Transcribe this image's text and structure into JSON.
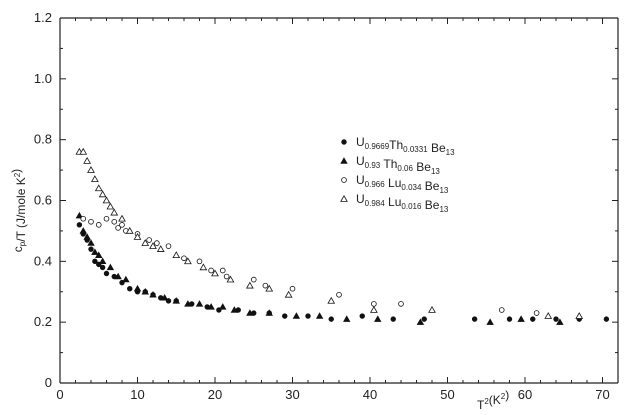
{
  "chart_data": {
    "type": "scatter",
    "title": "",
    "xlabel": "T",
    "xlabel_sup": "2",
    "xlabel_unit": "(K",
    "xlabel_unit_sup": "2",
    "xlabel_close": ")",
    "ylabel": "cp/T (J/mole K²)",
    "xlim": [
      0,
      72
    ],
    "ylim": [
      0,
      1.2
    ],
    "x_ticks": [
      0,
      10,
      20,
      30,
      40,
      50,
      60,
      70
    ],
    "y_ticks": [
      "0",
      "0.2",
      "0.4",
      "0.6",
      "0.8",
      "1.0",
      "1.2"
    ],
    "grid": false,
    "legend_position": "center-right",
    "series": [
      {
        "name": "U0.9669Th0.0331Be13",
        "name_parts": [
          [
            "U",
            ""
          ],
          [
            "0.9669",
            "sub"
          ],
          [
            "Th",
            ""
          ],
          [
            "0.0331",
            "sub"
          ],
          [
            " Be",
            ""
          ],
          [
            "13",
            "sub"
          ]
        ],
        "marker": "filled-circle",
        "points": [
          [
            2.5,
            0.52
          ],
          [
            3.0,
            0.49
          ],
          [
            3.5,
            0.47
          ],
          [
            4.0,
            0.44
          ],
          [
            4.5,
            0.4
          ],
          [
            5.0,
            0.39
          ],
          [
            5.5,
            0.38
          ],
          [
            6.0,
            0.36
          ],
          [
            7.0,
            0.35
          ],
          [
            8.0,
            0.33
          ],
          [
            9.0,
            0.31
          ],
          [
            10.0,
            0.3
          ],
          [
            11.0,
            0.3
          ],
          [
            12.0,
            0.29
          ],
          [
            13.0,
            0.28
          ],
          [
            14.0,
            0.27
          ],
          [
            15.0,
            0.27
          ],
          [
            17.0,
            0.26
          ],
          [
            19.0,
            0.25
          ],
          [
            20.5,
            0.24
          ],
          [
            23.0,
            0.24
          ],
          [
            25.0,
            0.23
          ],
          [
            27.0,
            0.23
          ],
          [
            29.0,
            0.22
          ],
          [
            32.0,
            0.22
          ],
          [
            35.0,
            0.21
          ],
          [
            39.0,
            0.22
          ],
          [
            43.0,
            0.21
          ],
          [
            47.0,
            0.21
          ],
          [
            53.5,
            0.21
          ],
          [
            58.0,
            0.21
          ],
          [
            61.0,
            0.21
          ],
          [
            64.0,
            0.21
          ],
          [
            67.0,
            0.21
          ],
          [
            70.5,
            0.21
          ]
        ]
      },
      {
        "name": "U0.93Th0.06Be13",
        "name_parts": [
          [
            "U",
            ""
          ],
          [
            "0.93",
            "sub"
          ],
          [
            " Th",
            ""
          ],
          [
            "0.06",
            "sub"
          ],
          [
            " Be",
            ""
          ],
          [
            "13",
            "sub"
          ]
        ],
        "marker": "filled-triangle",
        "points": [
          [
            2.5,
            0.55
          ],
          [
            3.0,
            0.5
          ],
          [
            3.5,
            0.48
          ],
          [
            4.0,
            0.46
          ],
          [
            4.5,
            0.43
          ],
          [
            5.0,
            0.42
          ],
          [
            5.5,
            0.4
          ],
          [
            6.5,
            0.38
          ],
          [
            7.5,
            0.35
          ],
          [
            8.5,
            0.34
          ],
          [
            10.0,
            0.31
          ],
          [
            11.0,
            0.3
          ],
          [
            12.0,
            0.29
          ],
          [
            13.5,
            0.28
          ],
          [
            15.0,
            0.27
          ],
          [
            16.5,
            0.26
          ],
          [
            18.0,
            0.26
          ],
          [
            19.5,
            0.25
          ],
          [
            21.0,
            0.25
          ],
          [
            22.5,
            0.24
          ],
          [
            24.5,
            0.23
          ],
          [
            27.0,
            0.23
          ],
          [
            30.5,
            0.22
          ],
          [
            33.5,
            0.22
          ],
          [
            37.0,
            0.21
          ],
          [
            41.0,
            0.21
          ],
          [
            46.5,
            0.2
          ],
          [
            55.5,
            0.2
          ],
          [
            59.5,
            0.21
          ],
          [
            64.5,
            0.2
          ]
        ]
      },
      {
        "name": "U0.966Lu0.034Be13",
        "name_parts": [
          [
            "U",
            ""
          ],
          [
            "0.966",
            "sub"
          ],
          [
            " Lu",
            ""
          ],
          [
            "0.034",
            "sub"
          ],
          [
            " Be",
            ""
          ],
          [
            "13",
            "sub"
          ]
        ],
        "marker": "open-circle",
        "points": [
          [
            3.0,
            0.54
          ],
          [
            4.0,
            0.53
          ],
          [
            5.0,
            0.52
          ],
          [
            6.0,
            0.54
          ],
          [
            7.0,
            0.53
          ],
          [
            7.5,
            0.51
          ],
          [
            8.0,
            0.52
          ],
          [
            8.5,
            0.5
          ],
          [
            10.0,
            0.49
          ],
          [
            11.5,
            0.47
          ],
          [
            12.5,
            0.46
          ],
          [
            14.0,
            0.45
          ],
          [
            16.0,
            0.41
          ],
          [
            18.0,
            0.4
          ],
          [
            19.5,
            0.37
          ],
          [
            21.0,
            0.37
          ],
          [
            21.5,
            0.35
          ],
          [
            25.0,
            0.34
          ],
          [
            26.5,
            0.32
          ],
          [
            30.0,
            0.31
          ],
          [
            36.0,
            0.29
          ],
          [
            40.5,
            0.26
          ],
          [
            44.0,
            0.26
          ],
          [
            57.0,
            0.24
          ],
          [
            61.5,
            0.23
          ]
        ]
      },
      {
        "name": "U0.984Lu0.016Be13",
        "name_parts": [
          [
            "U",
            ""
          ],
          [
            "0.984",
            "sub"
          ],
          [
            " Lu",
            ""
          ],
          [
            "0.016",
            "sub"
          ],
          [
            " Be",
            ""
          ],
          [
            "13",
            "sub"
          ]
        ],
        "marker": "open-triangle",
        "points": [
          [
            2.5,
            0.76
          ],
          [
            3.0,
            0.76
          ],
          [
            3.5,
            0.73
          ],
          [
            4.0,
            0.7
          ],
          [
            4.5,
            0.67
          ],
          [
            5.0,
            0.64
          ],
          [
            5.5,
            0.62
          ],
          [
            6.0,
            0.6
          ],
          [
            6.5,
            0.58
          ],
          [
            7.0,
            0.56
          ],
          [
            8.0,
            0.54
          ],
          [
            9.0,
            0.5
          ],
          [
            10.0,
            0.48
          ],
          [
            11.0,
            0.46
          ],
          [
            12.0,
            0.45
          ],
          [
            13.0,
            0.44
          ],
          [
            15.0,
            0.42
          ],
          [
            16.5,
            0.4
          ],
          [
            18.5,
            0.38
          ],
          [
            20.0,
            0.36
          ],
          [
            22.0,
            0.34
          ],
          [
            24.5,
            0.32
          ],
          [
            27.0,
            0.31
          ],
          [
            29.5,
            0.29
          ],
          [
            35.0,
            0.27
          ],
          [
            40.5,
            0.24
          ],
          [
            48.0,
            0.24
          ],
          [
            63.0,
            0.22
          ],
          [
            67.0,
            0.22
          ]
        ]
      }
    ]
  }
}
